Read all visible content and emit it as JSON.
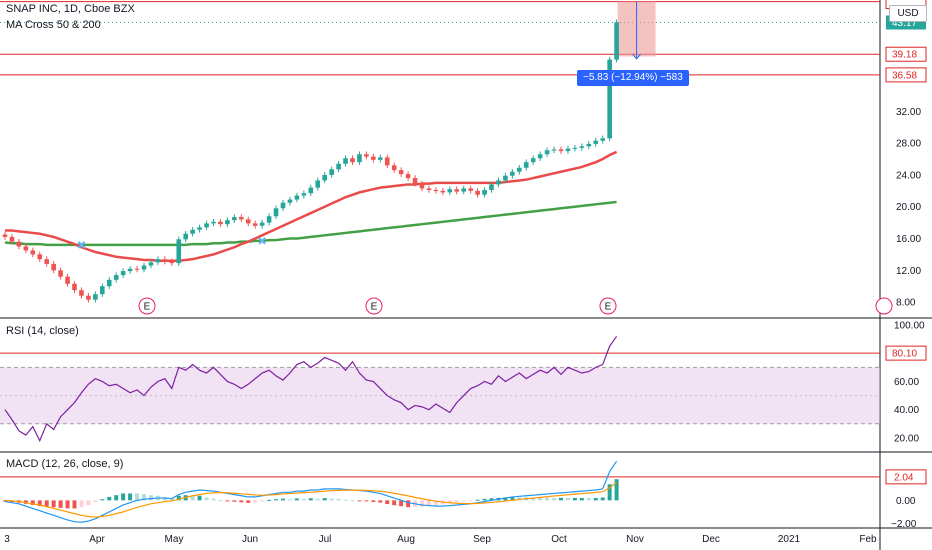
{
  "header": {
    "symbol": "SNAP INC, 1D, Cboe BZX",
    "indicator": "MA Cross 50 & 200",
    "currency": "USD"
  },
  "measure": {
    "label": "−5.83 (−12.94%) −583"
  },
  "colors": {
    "up": "#26a69a",
    "down": "#ef5350",
    "ma50": "#e94b4b",
    "ma200": "#43a047",
    "rsi": "#7b1fa2",
    "rsi_band": "#e1bee7",
    "macd": "#2196f3",
    "signal": "#ff9800",
    "hline": "#e02424"
  },
  "chart_data": [
    {
      "type": "candlestick",
      "title": "SNAP INC, 1D, Cboe BZX",
      "ylim": [
        6,
        46
      ],
      "yticks": [
        8,
        12,
        16,
        20,
        24,
        28,
        32
      ],
      "x_labels": [
        "3",
        "Apr",
        "May",
        "Jun",
        "Jul",
        "Aug",
        "Sep",
        "Oct",
        "Nov",
        "Dec",
        "2021",
        "Feb"
      ],
      "earnings_markers": [
        "E",
        "E",
        "E"
      ],
      "closes": [
        16.2,
        15.6,
        15.0,
        14.5,
        14.0,
        13.4,
        12.8,
        12.0,
        11.2,
        10.3,
        9.5,
        8.8,
        8.3,
        9.0,
        10.0,
        10.8,
        11.4,
        11.9,
        12.2,
        12.1,
        12.6,
        13.0,
        13.4,
        13.1,
        12.9,
        15.9,
        16.6,
        17.1,
        17.4,
        17.9,
        18.1,
        17.8,
        18.3,
        18.7,
        18.4,
        17.9,
        17.6,
        18.0,
        18.8,
        19.8,
        20.5,
        20.9,
        21.4,
        21.7,
        22.4,
        23.3,
        24.0,
        24.7,
        25.4,
        26.1,
        25.6,
        26.6,
        26.3,
        25.9,
        26.2,
        25.2,
        24.6,
        24.1,
        23.6,
        22.9,
        22.3,
        22.1,
        22.0,
        21.8,
        22.2,
        21.9,
        22.3,
        22.0,
        21.5,
        22.1,
        22.8,
        23.3,
        23.9,
        24.4,
        24.9,
        25.6,
        26.1,
        26.6,
        27.1,
        27.2,
        27.0,
        27.3,
        27.4,
        27.6,
        27.9,
        28.3,
        28.6,
        38.5,
        43.2
      ],
      "indicators": {
        "ma50": [
          17.0,
          17.0,
          16.9,
          16.8,
          16.7,
          16.6,
          16.4,
          16.2,
          15.9,
          15.6,
          15.3,
          14.9,
          14.6,
          14.3,
          14.1,
          13.9,
          13.7,
          13.6,
          13.5,
          13.4,
          13.3,
          13.3,
          13.2,
          13.2,
          13.2,
          13.2,
          13.3,
          13.4,
          13.6,
          13.8,
          14.0,
          14.3,
          14.6,
          14.9,
          15.3,
          15.6,
          16.0,
          16.4,
          16.8,
          17.2,
          17.6,
          18.0,
          18.4,
          18.8,
          19.2,
          19.6,
          20.0,
          20.4,
          20.8,
          21.2,
          21.5,
          21.8,
          22.0,
          22.2,
          22.4,
          22.5,
          22.6,
          22.7,
          22.8,
          22.8,
          22.9,
          22.9,
          23.0,
          23.0,
          23.0,
          23.0,
          23.0,
          23.0,
          23.0,
          23.0,
          23.0,
          23.0,
          23.1,
          23.2,
          23.3,
          23.4,
          23.6,
          23.8,
          24.0,
          24.2,
          24.4,
          24.6,
          24.8,
          25.0,
          25.3,
          25.6,
          26.0,
          26.5,
          26.9
        ],
        "ma200": [
          15.5,
          15.4,
          15.4,
          15.3,
          15.3,
          15.3,
          15.2,
          15.2,
          15.2,
          15.2,
          15.2,
          15.2,
          15.2,
          15.2,
          15.2,
          15.2,
          15.2,
          15.2,
          15.2,
          15.2,
          15.2,
          15.2,
          15.2,
          15.2,
          15.2,
          15.2,
          15.2,
          15.3,
          15.3,
          15.3,
          15.4,
          15.4,
          15.5,
          15.5,
          15.6,
          15.6,
          15.7,
          15.7,
          15.8,
          15.8,
          15.9,
          16.0,
          16.0,
          16.1,
          16.2,
          16.3,
          16.4,
          16.5,
          16.6,
          16.7,
          16.8,
          16.9,
          17.0,
          17.1,
          17.2,
          17.3,
          17.4,
          17.5,
          17.6,
          17.7,
          17.8,
          17.9,
          18.0,
          18.1,
          18.2,
          18.3,
          18.4,
          18.5,
          18.6,
          18.7,
          18.8,
          18.9,
          19.0,
          19.1,
          19.2,
          19.3,
          19.4,
          19.5,
          19.6,
          19.7,
          19.8,
          19.9,
          20.0,
          20.1,
          20.2,
          20.3,
          20.4,
          20.5,
          20.6
        ]
      },
      "hlines": [
        45.8,
        39.18,
        36.58
      ],
      "price_tags": [
        {
          "value": 43.17,
          "label": "43.17",
          "style": "up"
        },
        {
          "value": 39.18,
          "label": "39.18",
          "style": "line"
        },
        {
          "value": 36.58,
          "label": "36.58",
          "style": "line"
        }
      ]
    },
    {
      "type": "line",
      "title": "RSI (14, close)",
      "ylim": [
        10,
        105
      ],
      "yticks": [
        20,
        40,
        60,
        80,
        100
      ],
      "band": [
        30,
        70
      ],
      "hline": 80.1,
      "hline_label": "80.10",
      "values": [
        40,
        33,
        25,
        22,
        28,
        18,
        30,
        26,
        35,
        40,
        45,
        52,
        58,
        62,
        60,
        57,
        58,
        55,
        52,
        54,
        50,
        56,
        60,
        62,
        55,
        70,
        68,
        72,
        68,
        66,
        70,
        65,
        60,
        58,
        55,
        58,
        62,
        66,
        68,
        64,
        61,
        66,
        72,
        74,
        70,
        73,
        77,
        75,
        73,
        68,
        74,
        66,
        61,
        60,
        55,
        50,
        47,
        45,
        40,
        43,
        42,
        40,
        44,
        41,
        38,
        45,
        50,
        55,
        57,
        60,
        58,
        64,
        60,
        63,
        66,
        62,
        65,
        68,
        66,
        70,
        65,
        70,
        68,
        66,
        67,
        70,
        72,
        85,
        92
      ]
    },
    {
      "type": "line",
      "title": "MACD (12, 26, close, 9)",
      "ylim": [
        -2.4,
        4.2
      ],
      "yticks": [
        -2.0,
        0.0,
        2.0
      ],
      "hline": 2.04,
      "hline_label": "2.04",
      "series": [
        {
          "name": "MACD",
          "values": [
            -0.1,
            -0.2,
            -0.3,
            -0.5,
            -0.7,
            -0.9,
            -1.1,
            -1.3,
            -1.5,
            -1.7,
            -1.85,
            -1.9,
            -1.8,
            -1.6,
            -1.3,
            -1.0,
            -0.7,
            -0.4,
            -0.2,
            0.0,
            0.1,
            0.15,
            0.2,
            0.2,
            0.15,
            0.5,
            0.7,
            0.8,
            0.9,
            0.85,
            0.8,
            0.7,
            0.6,
            0.5,
            0.4,
            0.3,
            0.3,
            0.4,
            0.5,
            0.6,
            0.7,
            0.7,
            0.8,
            0.8,
            0.9,
            0.9,
            1.0,
            1.0,
            1.0,
            0.95,
            0.9,
            0.85,
            0.8,
            0.7,
            0.6,
            0.4,
            0.2,
            0.0,
            -0.2,
            -0.3,
            -0.4,
            -0.45,
            -0.5,
            -0.5,
            -0.45,
            -0.4,
            -0.35,
            -0.3,
            -0.2,
            -0.1,
            0.0,
            0.1,
            0.2,
            0.3,
            0.35,
            0.4,
            0.45,
            0.5,
            0.55,
            0.6,
            0.65,
            0.7,
            0.75,
            0.8,
            0.85,
            0.9,
            1.0,
            2.5,
            3.4
          ]
        },
        {
          "name": "Signal",
          "values": [
            0.0,
            -0.05,
            -0.1,
            -0.2,
            -0.3,
            -0.4,
            -0.55,
            -0.7,
            -0.85,
            -1.0,
            -1.15,
            -1.3,
            -1.4,
            -1.45,
            -1.4,
            -1.3,
            -1.15,
            -1.0,
            -0.8,
            -0.6,
            -0.45,
            -0.3,
            -0.2,
            -0.1,
            -0.05,
            0.1,
            0.25,
            0.4,
            0.5,
            0.6,
            0.65,
            0.68,
            0.66,
            0.62,
            0.57,
            0.52,
            0.47,
            0.45,
            0.46,
            0.5,
            0.55,
            0.6,
            0.63,
            0.67,
            0.71,
            0.75,
            0.8,
            0.84,
            0.87,
            0.89,
            0.89,
            0.88,
            0.87,
            0.84,
            0.79,
            0.72,
            0.62,
            0.51,
            0.39,
            0.26,
            0.14,
            0.03,
            -0.07,
            -0.15,
            -0.21,
            -0.25,
            -0.27,
            -0.28,
            -0.26,
            -0.23,
            -0.18,
            -0.12,
            -0.06,
            0.01,
            0.08,
            0.14,
            0.2,
            0.26,
            0.32,
            0.38,
            0.43,
            0.49,
            0.54,
            0.59,
            0.64,
            0.69,
            0.75,
            1.1,
            1.56
          ]
        }
      ]
    }
  ]
}
